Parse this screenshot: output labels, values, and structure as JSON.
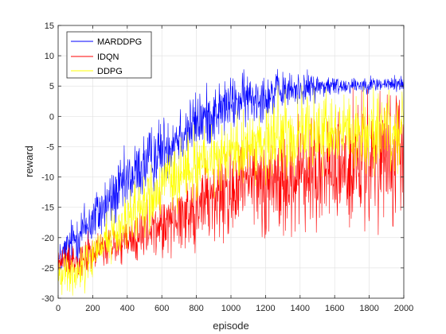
{
  "chart_data": {
    "type": "line",
    "title": "",
    "xlabel": "episode",
    "ylabel": "reward",
    "xlim": [
      0,
      2000
    ],
    "ylim": [
      -30,
      15
    ],
    "xticks": [
      0,
      200,
      400,
      600,
      800,
      1000,
      1200,
      1400,
      1600,
      1800,
      2000
    ],
    "yticks": [
      -30,
      -25,
      -20,
      -15,
      -10,
      -5,
      0,
      5,
      10,
      15
    ],
    "grid": true,
    "legend_position": "top-left",
    "series": [
      {
        "name": "MARDDPG",
        "color": "#0000ff",
        "x": [
          0,
          100,
          200,
          300,
          400,
          500,
          600,
          700,
          800,
          900,
          1000,
          1100,
          1200,
          1300,
          1400,
          1500,
          1600,
          1700,
          1800,
          1900,
          2000
        ],
        "mean": [
          -24,
          -20,
          -17,
          -14,
          -11,
          -8,
          -5.5,
          -3,
          -1,
          0.5,
          2,
          3,
          3.5,
          4,
          4.5,
          5,
          5,
          5.2,
          5.3,
          5.3,
          5.4
        ],
        "spread": [
          2.5,
          4,
          4.5,
          4.5,
          5,
          5,
          5,
          5,
          4.5,
          4.5,
          4,
          4,
          3.5,
          3,
          2.5,
          2,
          1.5,
          1.2,
          1.2,
          1.2,
          1.2
        ]
      },
      {
        "name": "IDQN",
        "color": "#ff0000",
        "x": [
          0,
          100,
          200,
          300,
          400,
          500,
          600,
          700,
          800,
          900,
          1000,
          1100,
          1200,
          1300,
          1400,
          1500,
          1600,
          1700,
          1800,
          1900,
          2000
        ],
        "mean": [
          -24,
          -23.5,
          -22.5,
          -21.5,
          -21,
          -19.5,
          -18,
          -16.5,
          -15,
          -13.5,
          -12.5,
          -11.5,
          -11,
          -10.5,
          -10,
          -9.5,
          -9,
          -8.5,
          -8,
          -7.5,
          -7
        ],
        "spread": [
          2,
          2.5,
          3,
          3,
          3.5,
          4,
          4.5,
          5,
          6,
          7,
          7.5,
          8,
          8,
          8,
          8.5,
          9,
          9,
          9,
          9.5,
          9.5,
          9.5
        ]
      },
      {
        "name": "DDPG",
        "color": "#ffff00",
        "x": [
          0,
          100,
          200,
          300,
          400,
          500,
          600,
          700,
          800,
          900,
          1000,
          1100,
          1200,
          1300,
          1400,
          1500,
          1600,
          1700,
          1800,
          1900,
          2000
        ],
        "mean": [
          -26,
          -25.5,
          -23,
          -20,
          -17,
          -14,
          -12,
          -10,
          -8,
          -7,
          -6,
          -5,
          -4,
          -3.5,
          -3,
          -3,
          -3,
          -3,
          -3,
          -3,
          -3
        ],
        "spread": [
          3,
          3,
          3.5,
          4,
          4.5,
          5,
          5,
          5,
          5,
          5,
          5,
          5.5,
          5.5,
          6,
          6,
          6,
          6,
          6,
          6,
          6,
          6
        ]
      }
    ]
  }
}
